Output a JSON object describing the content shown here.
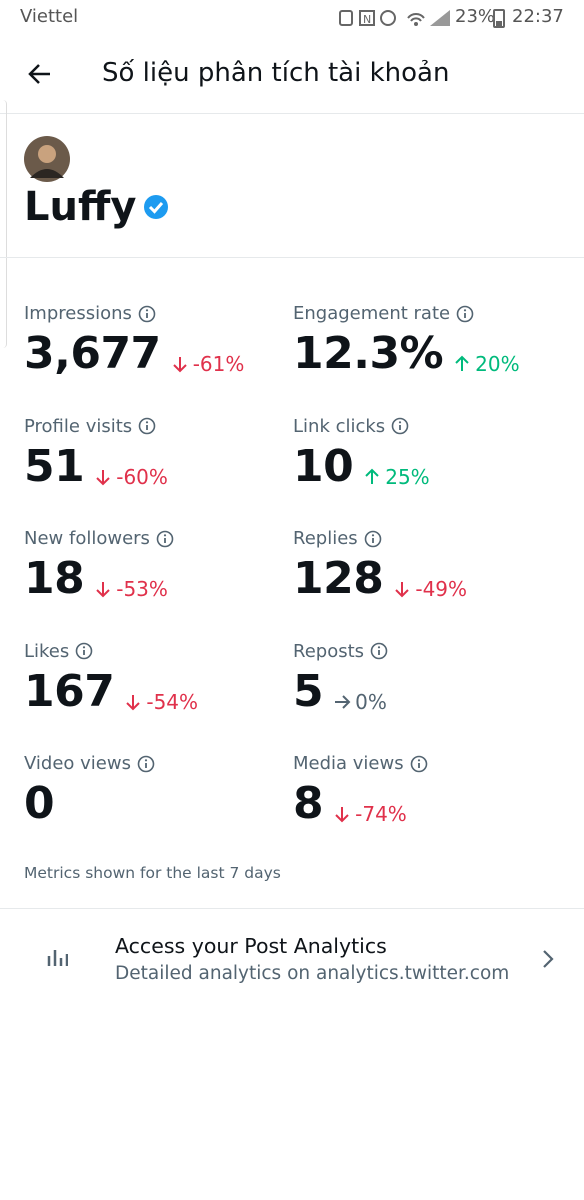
{
  "status_bar": {
    "carrier": "Viettel",
    "battery": "23%",
    "time": "22:37"
  },
  "header": {
    "title": "Số liệu phân tích tài khoản"
  },
  "profile": {
    "name": "Luffy",
    "verified": true
  },
  "metrics": [
    {
      "label": "Impressions",
      "value": "3,677",
      "change": "-61%",
      "direction": "down"
    },
    {
      "label": "Engagement rate",
      "value": "12.3%",
      "change": "20%",
      "direction": "up"
    },
    {
      "label": "Profile visits",
      "value": "51",
      "change": "-60%",
      "direction": "down"
    },
    {
      "label": "Link clicks",
      "value": "10",
      "change": "25%",
      "direction": "up"
    },
    {
      "label": "New followers",
      "value": "18",
      "change": "-53%",
      "direction": "down"
    },
    {
      "label": "Replies",
      "value": "128",
      "change": "-49%",
      "direction": "down"
    },
    {
      "label": "Likes",
      "value": "167",
      "change": "-54%",
      "direction": "down"
    },
    {
      "label": "Reposts",
      "value": "5",
      "change": "0%",
      "direction": "flat"
    },
    {
      "label": "Video views",
      "value": "0"
    },
    {
      "label": "Media views",
      "value": "8",
      "change": "-74%",
      "direction": "down"
    }
  ],
  "note": "Metrics shown for the last 7 days",
  "link_card": {
    "title": "Access your Post Analytics",
    "subtitle": "Detailed analytics on analytics.twitter.com"
  }
}
